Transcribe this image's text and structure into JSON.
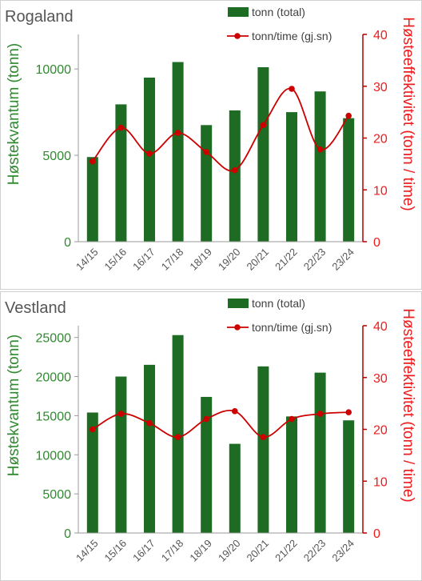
{
  "colors": {
    "bars": "#1e6b24",
    "line": "#cc0000",
    "left_axis_text": "#2f8a2f",
    "right_axis_text": "#ee1c1c",
    "right_axis_line": "#b00000",
    "title": "#555555",
    "tick_text": "#555555",
    "legend_text": "#404040"
  },
  "chart_data": [
    {
      "type": "bar",
      "title": "Rogaland",
      "categories": [
        "14/15",
        "15/16",
        "16/17",
        "17/18",
        "18/19",
        "19/20",
        "20/21",
        "21/22",
        "22/23",
        "23/24"
      ],
      "series": [
        {
          "name": "tonn (total)",
          "type": "bar",
          "axis": "left",
          "values": [
            4900,
            7950,
            9500,
            10400,
            6750,
            7600,
            10100,
            7500,
            8700,
            7150
          ]
        },
        {
          "name": "tonn/time (gj.sn)",
          "type": "line",
          "axis": "right",
          "values": [
            15.5,
            22,
            17,
            21,
            17.3,
            13.8,
            22.5,
            29.5,
            17.8,
            24.3
          ]
        }
      ],
      "ylabel": "Høstekvantum  (tonn)",
      "y2label": "Høsteeffektivitet (tonn / time)",
      "ylim": [
        0,
        12000
      ],
      "yticks": [
        0,
        5000,
        10000
      ],
      "y2lim": [
        0,
        40
      ],
      "y2ticks": [
        0,
        10,
        20,
        30,
        40
      ],
      "legend": "top-right",
      "grid": false
    },
    {
      "type": "bar",
      "title": "Vestland",
      "categories": [
        "14/15",
        "15/16",
        "16/17",
        "17/18",
        "18/19",
        "19/20",
        "20/21",
        "21/22",
        "22/23",
        "23/24"
      ],
      "series": [
        {
          "name": "tonn (total)",
          "type": "bar",
          "axis": "left",
          "values": [
            15400,
            20000,
            21500,
            25300,
            17400,
            11400,
            21300,
            14900,
            20500,
            14400
          ]
        },
        {
          "name": "tonn/time (gj.sn)",
          "type": "line",
          "axis": "right",
          "values": [
            20,
            23,
            21.2,
            18.5,
            22,
            23.5,
            18.5,
            22,
            23,
            23.3
          ]
        }
      ],
      "ylabel": "Høstekvantum  (tonn)",
      "y2label": "Høsteeffektivitet (tonn / time)",
      "ylim": [
        0,
        26500
      ],
      "yticks": [
        0,
        5000,
        10000,
        15000,
        20000,
        25000
      ],
      "y2lim": [
        0,
        40
      ],
      "y2ticks": [
        0,
        10,
        20,
        30,
        40
      ],
      "legend": "top-right",
      "grid": false
    }
  ]
}
